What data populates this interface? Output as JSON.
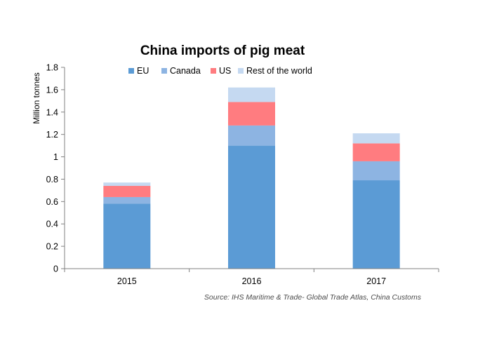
{
  "chart_data": {
    "type": "bar",
    "stacked": true,
    "title": "China imports of pig meat",
    "ylabel": "Million tonnes",
    "xlabel": "",
    "categories": [
      "2015",
      "2016",
      "2017"
    ],
    "series": [
      {
        "name": "EU",
        "color": "#5b9bd5",
        "values": [
          0.58,
          1.1,
          0.79
        ]
      },
      {
        "name": "Canada",
        "color": "#8db4e2",
        "values": [
          0.06,
          0.18,
          0.17
        ]
      },
      {
        "name": "US",
        "color": "#ff7c80",
        "values": [
          0.1,
          0.21,
          0.16
        ]
      },
      {
        "name": "Rest of the world",
        "color": "#c5d9f1",
        "values": [
          0.03,
          0.13,
          0.09
        ]
      }
    ],
    "ylim": [
      0,
      1.8
    ],
    "yticks": [
      "0",
      "0.2",
      "0.4",
      "0.6",
      "0.8",
      "1",
      "1.2",
      "1.4",
      "1.6",
      "1.8"
    ],
    "grid": false,
    "legend_position": "top",
    "source": "Source: IHS Maritime & Trade- Global Trade Atlas, China Customs"
  }
}
